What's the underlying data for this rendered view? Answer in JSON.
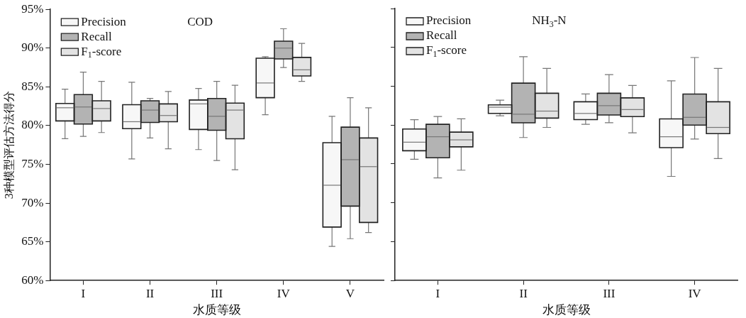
{
  "chart_data": [
    {
      "type": "box",
      "title": "COD",
      "xlabel": "水质等级",
      "ylabel": "3种模型评估方法得分",
      "categories": [
        "I",
        "II",
        "III",
        "IV",
        "V"
      ],
      "ylim": [
        60,
        95
      ],
      "yticks": [
        {
          "value": 60,
          "label": "60%"
        },
        {
          "value": 65,
          "label": "65%"
        },
        {
          "value": 70,
          "label": "70%"
        },
        {
          "value": 75,
          "label": "75%"
        },
        {
          "value": 80,
          "label": "80%"
        },
        {
          "value": 85,
          "label": "85%"
        },
        {
          "value": 90,
          "label": "90%"
        },
        {
          "value": 95,
          "label": "95%"
        }
      ],
      "grid": false,
      "legend": "top left",
      "series": [
        {
          "name": "Precision",
          "color": "#f7f7f7",
          "boxes": [
            {
              "low": 78.3,
              "q1": 80.6,
              "median": 82.3,
              "q3": 82.85,
              "high": 84.7
            },
            {
              "low": 75.7,
              "q1": 79.6,
              "median": 80.5,
              "q3": 82.7,
              "high": 85.6
            },
            {
              "low": 76.9,
              "q1": 79.5,
              "median": 82.8,
              "q3": 83.3,
              "high": 84.8
            },
            {
              "low": 81.4,
              "q1": 83.6,
              "median": 85.5,
              "q3": 88.7,
              "high": 88.9
            },
            {
              "low": 64.4,
              "q1": 66.9,
              "median": 72.3,
              "q3": 77.8,
              "high": 81.2
            }
          ]
        },
        {
          "name": "Recall",
          "color": "#b3b3b3",
          "boxes": [
            {
              "low": 78.6,
              "q1": 80.2,
              "median": 82.4,
              "q3": 84.0,
              "high": 86.9
            },
            {
              "low": 78.4,
              "q1": 80.4,
              "median": 82.0,
              "q3": 83.2,
              "high": 83.5
            },
            {
              "low": 75.5,
              "q1": 79.4,
              "median": 81.2,
              "q3": 83.5,
              "high": 85.7
            },
            {
              "low": 87.5,
              "q1": 88.6,
              "median": 90.0,
              "q3": 90.9,
              "high": 92.5
            },
            {
              "low": 65.4,
              "q1": 69.6,
              "median": 75.6,
              "q3": 79.8,
              "high": 83.6
            }
          ]
        },
        {
          "name": "F$_{1}$-score",
          "color": "#e3e3e3",
          "boxes": [
            {
              "low": 79.1,
              "q1": 80.6,
              "median": 82.2,
              "q3": 83.2,
              "high": 85.7
            },
            {
              "low": 77.0,
              "q1": 80.5,
              "median": 81.3,
              "q3": 82.8,
              "high": 84.4
            },
            {
              "low": 74.3,
              "q1": 78.3,
              "median": 82.0,
              "q3": 82.9,
              "high": 85.2
            },
            {
              "low": 85.7,
              "q1": 86.4,
              "median": 87.2,
              "q3": 88.8,
              "high": 90.6
            },
            {
              "low": 66.2,
              "q1": 67.5,
              "median": 74.7,
              "q3": 78.4,
              "high": 82.3
            }
          ]
        }
      ]
    },
    {
      "type": "box",
      "title": "NH$_{3}$-N",
      "xlabel": "水质等级",
      "categories": [
        "I",
        "II",
        "III",
        "IV"
      ],
      "ylim": [
        60,
        95
      ],
      "yticks": [
        {
          "value": 60,
          "label": null
        },
        {
          "value": 65,
          "label": null
        },
        {
          "value": 70,
          "label": null
        },
        {
          "value": 75,
          "label": null
        },
        {
          "value": 80,
          "label": null
        },
        {
          "value": 85,
          "label": null
        },
        {
          "value": 90,
          "label": null
        },
        {
          "value": 95,
          "label": null
        }
      ],
      "tick_labels": "x",
      "grid": false,
      "legend": "top left",
      "series": [
        {
          "name": "Precision",
          "color": "#f7f7f7",
          "boxes": [
            {
              "low": 75.6,
              "q1": 76.7,
              "median": 77.8,
              "q3": 79.5,
              "high": 80.7
            },
            {
              "low": 81.2,
              "q1": 81.5,
              "median": 82.3,
              "q3": 82.6,
              "high": 83.2
            },
            {
              "low": 80.1,
              "q1": 80.7,
              "median": 81.5,
              "q3": 83.0,
              "high": 84.0
            },
            {
              "low": 73.4,
              "q1": 77.1,
              "median": 78.5,
              "q3": 80.8,
              "high": 85.7
            }
          ]
        },
        {
          "name": "Recall",
          "color": "#b3b3b3",
          "boxes": [
            {
              "low": 73.2,
              "q1": 75.8,
              "median": 78.5,
              "q3": 80.1,
              "high": 81.1
            },
            {
              "low": 78.4,
              "q1": 80.3,
              "median": 81.4,
              "q3": 85.4,
              "high": 88.8
            },
            {
              "low": 80.3,
              "q1": 81.3,
              "median": 82.5,
              "q3": 84.1,
              "high": 86.5
            },
            {
              "low": 78.2,
              "q1": 80.0,
              "median": 81.0,
              "q3": 84.0,
              "high": 88.7
            }
          ]
        },
        {
          "name": "F$_{1}$-score",
          "color": "#e3e3e3",
          "boxes": [
            {
              "low": 74.2,
              "q1": 77.2,
              "median": 78.1,
              "q3": 79.1,
              "high": 80.8
            },
            {
              "low": 79.7,
              "q1": 80.9,
              "median": 81.8,
              "q3": 84.1,
              "high": 87.3
            },
            {
              "low": 79.0,
              "q1": 81.1,
              "median": 82.0,
              "q3": 83.5,
              "high": 85.1
            },
            {
              "low": 75.7,
              "q1": 78.9,
              "median": 79.7,
              "q3": 83.0,
              "high": 87.3
            }
          ]
        }
      ]
    }
  ]
}
